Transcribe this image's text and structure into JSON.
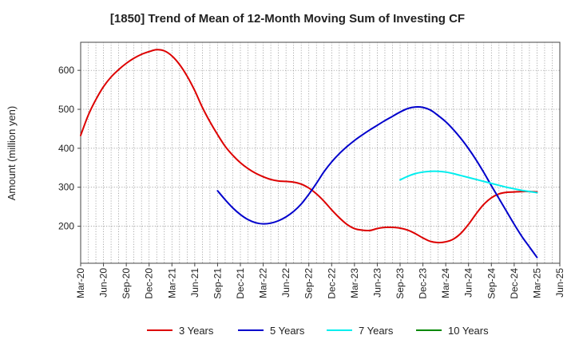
{
  "chart_data": {
    "type": "line",
    "title": "[1850]  Trend of Mean of 12-Month Moving Sum of Investing CF",
    "xlabel": "",
    "ylabel": "Amount (million yen)",
    "ylim": [
      105,
      672
    ],
    "y_ticks": [
      200,
      300,
      400,
      500,
      600
    ],
    "grid": true,
    "legend_position": "bottom",
    "x_tick_labels": [
      "Mar-20",
      "Jun-20",
      "Sep-20",
      "Dec-20",
      "Mar-21",
      "Jun-21",
      "Sep-21",
      "Dec-21",
      "Mar-22",
      "Jun-22",
      "Sep-22",
      "Dec-22",
      "Mar-23",
      "Jun-23",
      "Sep-23",
      "Dec-23",
      "Mar-24",
      "Jun-24",
      "Sep-24",
      "Dec-24",
      "Mar-25",
      "Jun-25"
    ],
    "x_unit": "month index from Mar-20",
    "series": [
      {
        "name": "3 Years",
        "color": "#dd0000",
        "x": [
          0,
          1,
          2,
          3,
          4,
          5,
          6,
          7,
          8,
          9,
          10,
          11,
          12,
          13,
          14,
          15,
          16,
          17,
          18,
          19,
          20,
          21,
          22,
          23,
          24,
          25,
          26,
          27,
          28,
          29,
          30,
          31,
          32,
          33,
          34,
          35,
          36,
          37,
          38,
          39,
          40,
          41,
          42,
          43,
          44,
          45,
          46,
          47,
          48,
          49,
          50,
          51,
          52,
          53,
          54,
          55,
          56,
          57,
          58,
          59,
          60
        ],
        "values": [
          433,
          485,
          525,
          558,
          583,
          602,
          618,
          631,
          641,
          648,
          653,
          650,
          637,
          615,
          585,
          548,
          505,
          468,
          435,
          405,
          382,
          363,
          348,
          336,
          327,
          320,
          316,
          315,
          313,
          308,
          298,
          283,
          264,
          242,
          222,
          205,
          194,
          190,
          189,
          194,
          197,
          197,
          195,
          190,
          181,
          170,
          161,
          158,
          160,
          167,
          182,
          205,
          232,
          256,
          273,
          283,
          287,
          288,
          289,
          289,
          288
        ]
      },
      {
        "name": "5 Years",
        "color": "#0000cc",
        "x": [
          18,
          19,
          20,
          21,
          22,
          23,
          24,
          25,
          26,
          27,
          28,
          29,
          30,
          31,
          32,
          33,
          34,
          35,
          36,
          37,
          38,
          39,
          40,
          41,
          42,
          43,
          44,
          45,
          46,
          47,
          48,
          49,
          50,
          51,
          52,
          53,
          54,
          55,
          56,
          57,
          58,
          59,
          60
        ],
        "values": [
          291,
          268,
          247,
          230,
          217,
          209,
          206,
          208,
          214,
          224,
          238,
          257,
          282,
          310,
          340,
          365,
          386,
          404,
          420,
          434,
          447,
          459,
          471,
          482,
          493,
          502,
          506,
          505,
          498,
          484,
          468,
          448,
          425,
          399,
          370,
          338,
          304,
          271,
          238,
          205,
          174,
          147,
          120
        ]
      },
      {
        "name": "7 Years",
        "color": "#00eeee",
        "x": [
          42,
          43,
          44,
          45,
          46,
          47,
          48,
          49,
          50,
          51,
          52,
          53,
          54,
          55,
          56,
          57,
          58,
          59,
          60
        ],
        "values": [
          319,
          328,
          335,
          339,
          341,
          341,
          339,
          335,
          330,
          325,
          320,
          315,
          310,
          305,
          300,
          296,
          292,
          289,
          286
        ]
      },
      {
        "name": "10 Years",
        "color": "#008800",
        "x": [],
        "values": []
      }
    ]
  }
}
